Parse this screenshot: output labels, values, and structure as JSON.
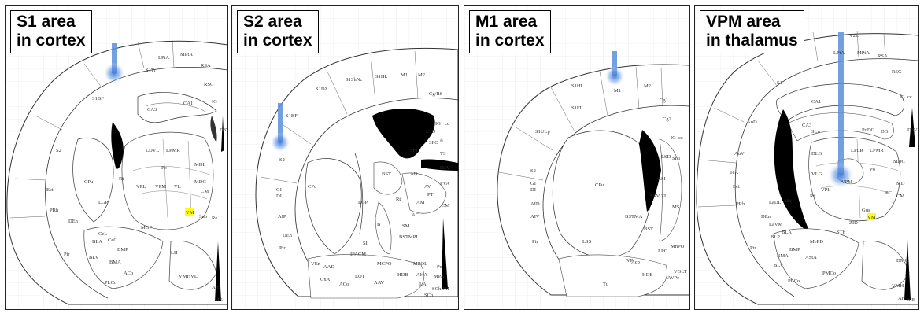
{
  "panels": [
    {
      "title_line1": "S1 area",
      "title_line2": "in cortex",
      "regions": [
        "S1Tr",
        "S1BF",
        "S2",
        "Ect",
        "PRh",
        "Pir",
        "CPu",
        "LGP",
        "LDVL",
        "LPMR",
        "VPM",
        "VPL",
        "VL",
        "Po",
        "Rt",
        "MDL",
        "MDC",
        "PC",
        "CM",
        "Sub",
        "Re",
        "VRe",
        "MGP",
        "LH",
        "BLA",
        "BLV",
        "BMA",
        "BMP",
        "CeL",
        "CeC",
        "MePV",
        "ACo",
        "PLCo",
        "VMHC",
        "VMHVL",
        "Arc",
        "ME",
        "DEn",
        "LaVL",
        "ASt",
        "IG",
        "CA1",
        "CA3",
        "D3V",
        "MHb",
        "LHb",
        "LPtA",
        "MPtA",
        "RSA",
        "RSG"
      ],
      "highlight": "VM"
    },
    {
      "title_line1": "S2 area",
      "title_line2": "in cortex",
      "regions": [
        "S1DZ",
        "S1ShNc",
        "S1HL",
        "M1",
        "M2",
        "Cg/RS",
        "S1BF",
        "S2",
        "GI",
        "DI",
        "AIP",
        "CPu",
        "LGP",
        "Rt",
        "AM",
        "AV",
        "AD",
        "PVA",
        "PT",
        "SFi",
        "SFO",
        "LSD",
        "D3V",
        "BST",
        "BSTMPL",
        "MPOL",
        "AHA",
        "LA",
        "SCh",
        "SChDM",
        "Pe",
        "MPA",
        "HDB",
        "LOT",
        "VEn",
        "AAD",
        "ACo",
        "CxA",
        "AAV",
        "SI",
        "IPACM",
        "MCPO",
        "Pir",
        "DEn",
        "B",
        "SM",
        "AC",
        "IG",
        "cc",
        "fi",
        "TS",
        "CM"
      ],
      "highlight": ""
    },
    {
      "title_line1": "M1 area",
      "title_line2": "in cortex",
      "regions": [
        "M1",
        "M2",
        "Cg1",
        "Cg2",
        "S1HL",
        "S1FL",
        "S1ULp",
        "S2",
        "GI",
        "DI",
        "AID",
        "AIV",
        "Pir",
        "CPu",
        "LSS",
        "Acb",
        "BSTMA",
        "BST",
        "LSV",
        "LSI",
        "LSD",
        "SHi",
        "MS",
        "LPO",
        "MnPO",
        "VP",
        "Tu",
        "HDB",
        "AVPe",
        "VOLT",
        "IG",
        "cc",
        "ZL"
      ],
      "highlight": ""
    },
    {
      "title_line1": "VPM area",
      "title_line2": "in thalamus",
      "regions": [
        "LPtA",
        "MPtA",
        "RSA",
        "RSG",
        "V2L",
        "S1",
        "AuD",
        "AuV",
        "TeA",
        "Ect",
        "PRh",
        "Pir",
        "DEn",
        "LaDL",
        "LaVM",
        "BLP",
        "BLA",
        "BMP",
        "BMA",
        "BLV",
        "ASt",
        "CA1",
        "CA3",
        "SLu",
        "PoDG",
        "DG",
        "DLG",
        "VLG",
        "LPLR",
        "LPMR",
        "Po",
        "VPM",
        "VPL",
        "Rt",
        "MD",
        "MDC",
        "PC",
        "CM",
        "VMH",
        "DMC",
        "Arc",
        "ME",
        "Gus",
        "ZID",
        "STh",
        "PMCo",
        "PLCo",
        "MePD",
        "AStA",
        "IG",
        "cc",
        "D3V"
      ],
      "highlight": "VM"
    }
  ]
}
